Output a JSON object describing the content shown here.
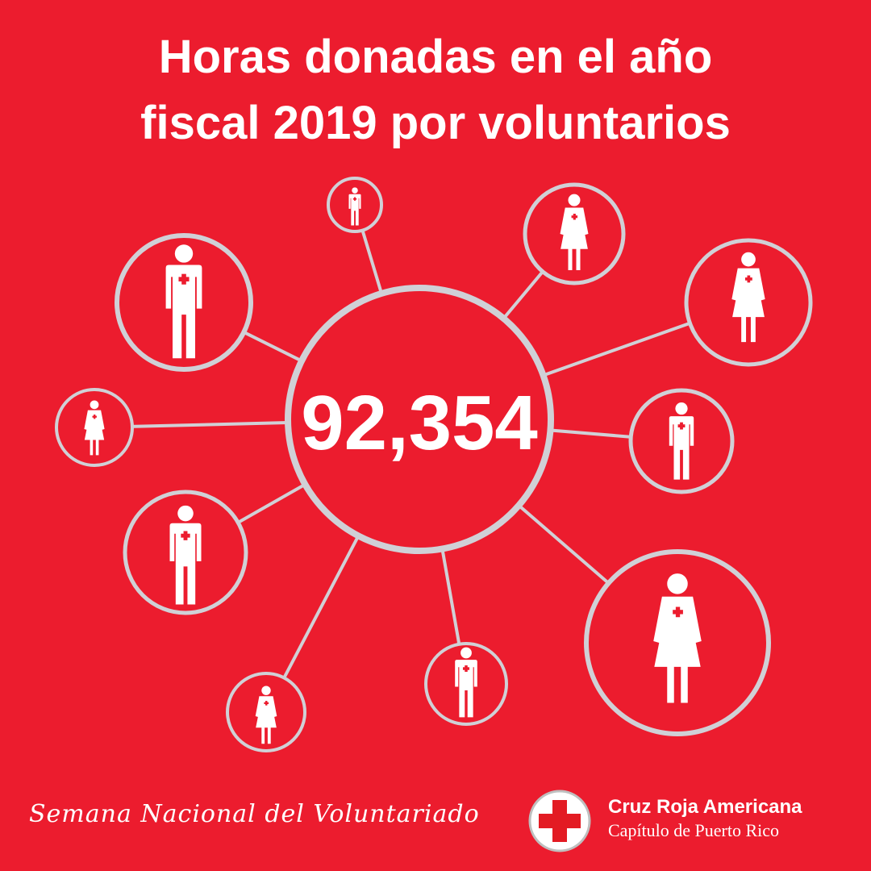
{
  "title": {
    "line1": "Horas donadas en el año",
    "line2": "fiscal 2019 por voluntarios"
  },
  "total_hours": "92,354",
  "footer": {
    "campaign": "Semana Nacional del Voluntariado",
    "brand_name": "Cruz Roja Americana",
    "brand_sub": "Capítulo de Puerto Rico"
  },
  "colors": {
    "background": "#ec1c2e",
    "ring": "#d0d0d6",
    "figure": "#ffffff",
    "cross": "#ec1c2e"
  },
  "volunteer_icons": [
    "man",
    "man",
    "woman",
    "woman",
    "woman",
    "man",
    "man",
    "woman",
    "woman",
    "man"
  ]
}
